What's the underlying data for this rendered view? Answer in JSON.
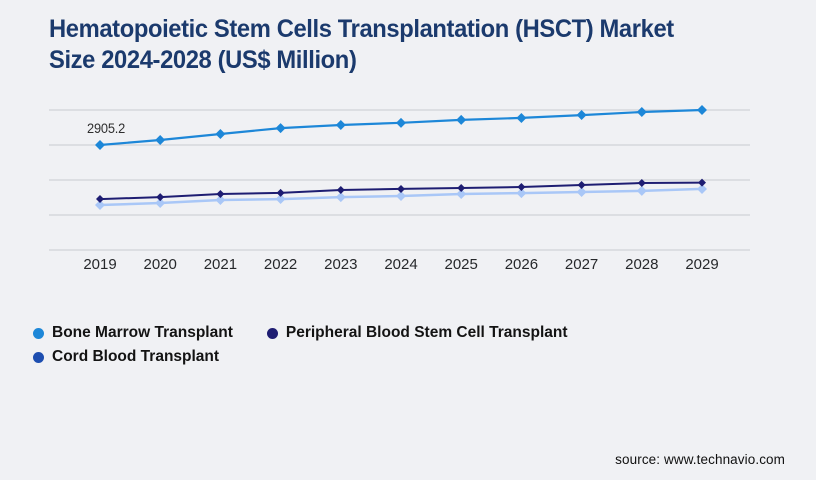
{
  "page": {
    "background": "#f0f1f4",
    "source_text": "source: www.technavio.com"
  },
  "title": {
    "line1": "Hematopoietic Stem Cells Transplantation (HSCT) Market",
    "line2": "Size 2024-2028 (US$ Million)",
    "color": "#1b3a6d"
  },
  "legend": {
    "items": [
      {
        "label": "Bone Marrow Transplant",
        "color": "#1d87d8"
      },
      {
        "label": "Peripheral Blood Stem Cell Transplant",
        "color": "#1e1d72"
      },
      {
        "label": "Cord Blood Transplant",
        "color": "#1d4eb0"
      }
    ]
  },
  "chart_data": {
    "type": "line",
    "title": "Hematopoietic Stem Cells Transplantation (HSCT) Market Size 2024-2028 (US$ Million)",
    "x": [
      2019,
      2020,
      2021,
      2022,
      2023,
      2024,
      2025,
      2026,
      2027,
      2028,
      2029
    ],
    "series": [
      {
        "name": "Bone Marrow Transplant",
        "color": "#1d87d8",
        "values": [
          2905.2,
          3045,
          3210,
          3375,
          3460,
          3520,
          3600,
          3655,
          3735,
          3820,
          3875
        ]
      },
      {
        "name": "Peripheral Blood Stem Cell Transplant",
        "color": "#1e1d72",
        "values": [
          1410,
          1465,
          1550,
          1580,
          1660,
          1690,
          1715,
          1745,
          1800,
          1855,
          1865
        ]
      },
      {
        "name": "Cord Blood Transplant",
        "color": "#a9c7f7",
        "legend_color": "#1d4eb0",
        "values": [
          1245,
          1300,
          1385,
          1410,
          1465,
          1495,
          1550,
          1575,
          1605,
          1635,
          1690
        ]
      }
    ],
    "annotation": {
      "text": "2905.2",
      "series": "Bone Marrow Transplant",
      "x": 2019
    },
    "marker": "diamond",
    "ylim": [
      0,
      3875
    ],
    "y_axis_visible": false,
    "gridlines": "horizontal",
    "gridline_count": 5,
    "gridline_color": "#c9cbd0",
    "legend_position": "bottom-left",
    "values_estimated_from_pixels": true
  }
}
